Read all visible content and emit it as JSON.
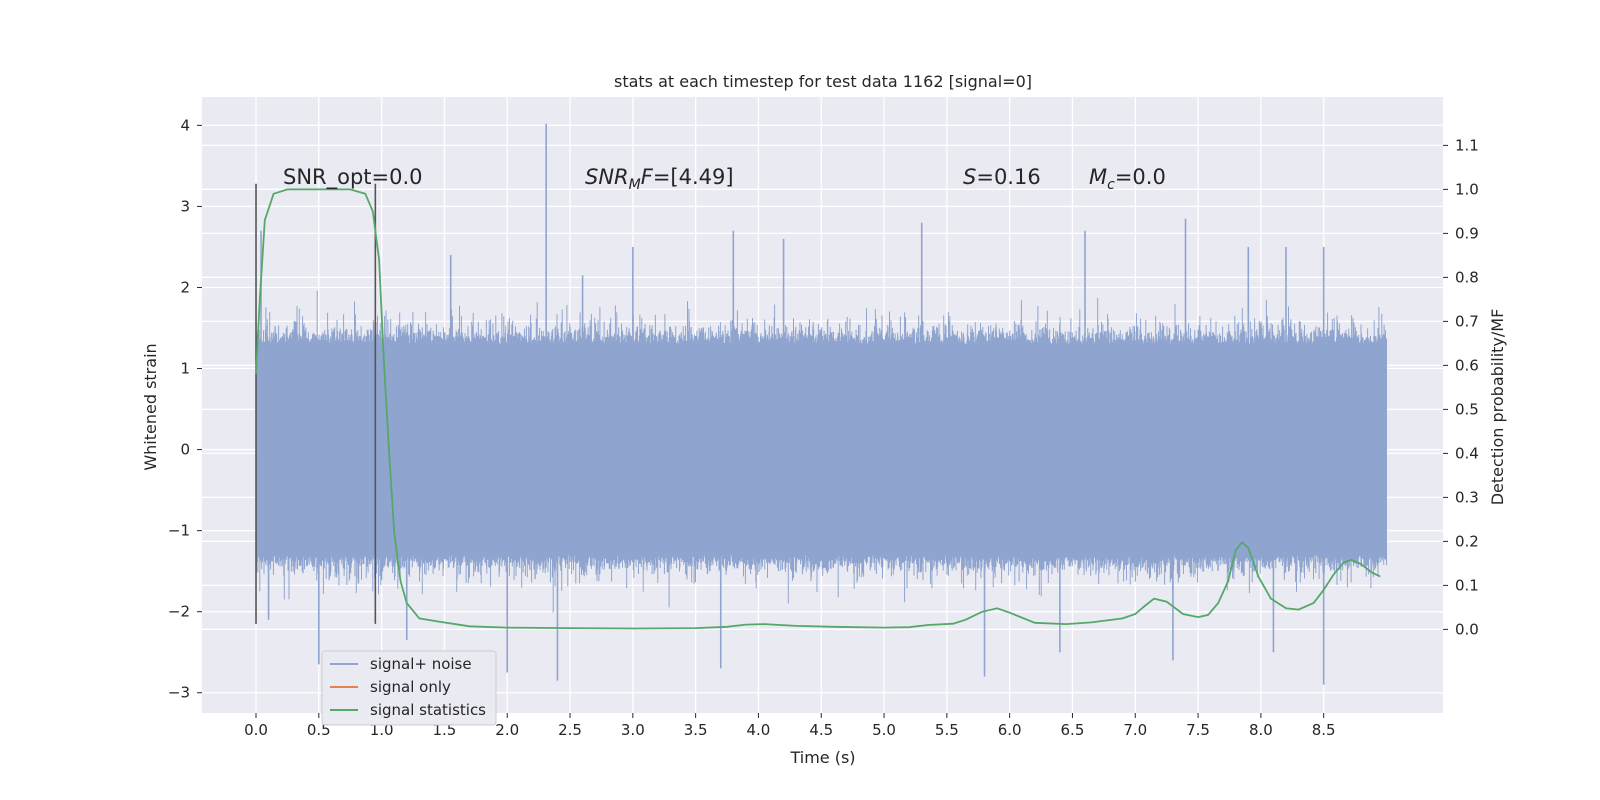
{
  "chart_data": {
    "type": "line",
    "title": "stats at each timestep for test data 1162 [signal=0]",
    "xlabel": "Time (s)",
    "ylabel": "Whitened strain",
    "y2label": "Detection probability/MF",
    "xlim": [
      -0.43,
      9.45
    ],
    "ylim": [
      -3.25,
      4.35
    ],
    "y2lim": [
      -0.19,
      1.21
    ],
    "x_ticks": [
      "0.0",
      "0.5",
      "1.0",
      "1.5",
      "2.0",
      "2.5",
      "3.0",
      "3.5",
      "4.0",
      "4.5",
      "5.0",
      "5.5",
      "6.0",
      "6.5",
      "7.0",
      "7.5",
      "8.0",
      "8.5"
    ],
    "y_ticks": [
      "−3",
      "−2",
      "−1",
      "0",
      "1",
      "2",
      "3",
      "4"
    ],
    "y2_ticks": [
      "0.0",
      "0.1",
      "0.2",
      "0.3",
      "0.4",
      "0.5",
      "0.6",
      "0.7",
      "0.8",
      "0.9",
      "1.0",
      "1.1"
    ],
    "grid": true,
    "legend_position": "lower-left",
    "annotations": {
      "snr_opt": "SNR_opt=0.0",
      "snr_mf_label": "SNR",
      "snr_mf_sub": "M",
      "snr_mf_rest": "F",
      "snr_mf_value": "=[4.49]",
      "s_label": "S",
      "s_value": "=0.16",
      "mc_label": "M",
      "mc_sub": "c",
      "mc_value": "=0.0"
    },
    "vertical_markers": [
      0.0,
      0.95
    ],
    "series": [
      {
        "name": "signal+ noise",
        "color": "#8fa5cf",
        "axis": "left",
        "x_range": [
          0.0,
          9.0
        ],
        "band_low": -1.3,
        "band_high": 1.3,
        "spikes": [
          {
            "x": 2.31,
            "y": 4.02
          },
          {
            "x": 0.04,
            "y": 2.7
          },
          {
            "x": 1.55,
            "y": 2.4
          },
          {
            "x": 2.6,
            "y": 2.15
          },
          {
            "x": 3.0,
            "y": 2.5
          },
          {
            "x": 3.8,
            "y": 2.7
          },
          {
            "x": 4.2,
            "y": 2.6
          },
          {
            "x": 5.3,
            "y": 2.8
          },
          {
            "x": 6.6,
            "y": 2.7
          },
          {
            "x": 7.4,
            "y": 2.85
          },
          {
            "x": 7.9,
            "y": 2.5
          },
          {
            "x": 8.2,
            "y": 2.5
          },
          {
            "x": 8.5,
            "y": 2.5
          },
          {
            "x": 0.5,
            "y": -2.65
          },
          {
            "x": 2.0,
            "y": -2.75
          },
          {
            "x": 2.4,
            "y": -2.85
          },
          {
            "x": 3.7,
            "y": -2.7
          },
          {
            "x": 5.8,
            "y": -2.8
          },
          {
            "x": 6.4,
            "y": -2.5
          },
          {
            "x": 7.3,
            "y": -2.6
          },
          {
            "x": 8.5,
            "y": -2.9
          },
          {
            "x": 8.1,
            "y": -2.5
          },
          {
            "x": 1.2,
            "y": -2.35
          },
          {
            "x": 0.1,
            "y": -2.1
          }
        ]
      },
      {
        "name": "signal only",
        "color": "#dd8452",
        "axis": "left",
        "x": [],
        "y": []
      },
      {
        "name": "signal statistics",
        "color": "#55a868",
        "axis": "right",
        "x": [
          0.0,
          0.03,
          0.07,
          0.14,
          0.25,
          0.4,
          0.6,
          0.75,
          0.87,
          0.93,
          0.98,
          1.02,
          1.06,
          1.1,
          1.15,
          1.2,
          1.3,
          1.45,
          1.7,
          2.0,
          2.5,
          3.0,
          3.5,
          3.75,
          3.9,
          4.05,
          4.3,
          4.6,
          5.0,
          5.2,
          5.35,
          5.55,
          5.65,
          5.78,
          5.9,
          6.0,
          6.2,
          6.45,
          6.65,
          6.9,
          7.0,
          7.07,
          7.15,
          7.25,
          7.38,
          7.5,
          7.58,
          7.66,
          7.74,
          7.8,
          7.85,
          7.9,
          7.98,
          8.08,
          8.2,
          8.3,
          8.42,
          8.5,
          8.58,
          8.66,
          8.72,
          8.8,
          8.88,
          8.95
        ],
        "y": [
          0.58,
          0.75,
          0.93,
          0.99,
          1.0,
          1.0,
          1.0,
          1.0,
          0.99,
          0.95,
          0.84,
          0.6,
          0.4,
          0.22,
          0.11,
          0.06,
          0.025,
          0.018,
          0.007,
          0.004,
          0.003,
          0.002,
          0.003,
          0.006,
          0.011,
          0.012,
          0.008,
          0.006,
          0.004,
          0.005,
          0.01,
          0.013,
          0.022,
          0.04,
          0.048,
          0.038,
          0.015,
          0.012,
          0.016,
          0.025,
          0.035,
          0.052,
          0.07,
          0.063,
          0.035,
          0.028,
          0.033,
          0.06,
          0.11,
          0.18,
          0.198,
          0.185,
          0.12,
          0.07,
          0.048,
          0.045,
          0.06,
          0.09,
          0.125,
          0.152,
          0.158,
          0.148,
          0.13,
          0.12
        ]
      }
    ]
  }
}
